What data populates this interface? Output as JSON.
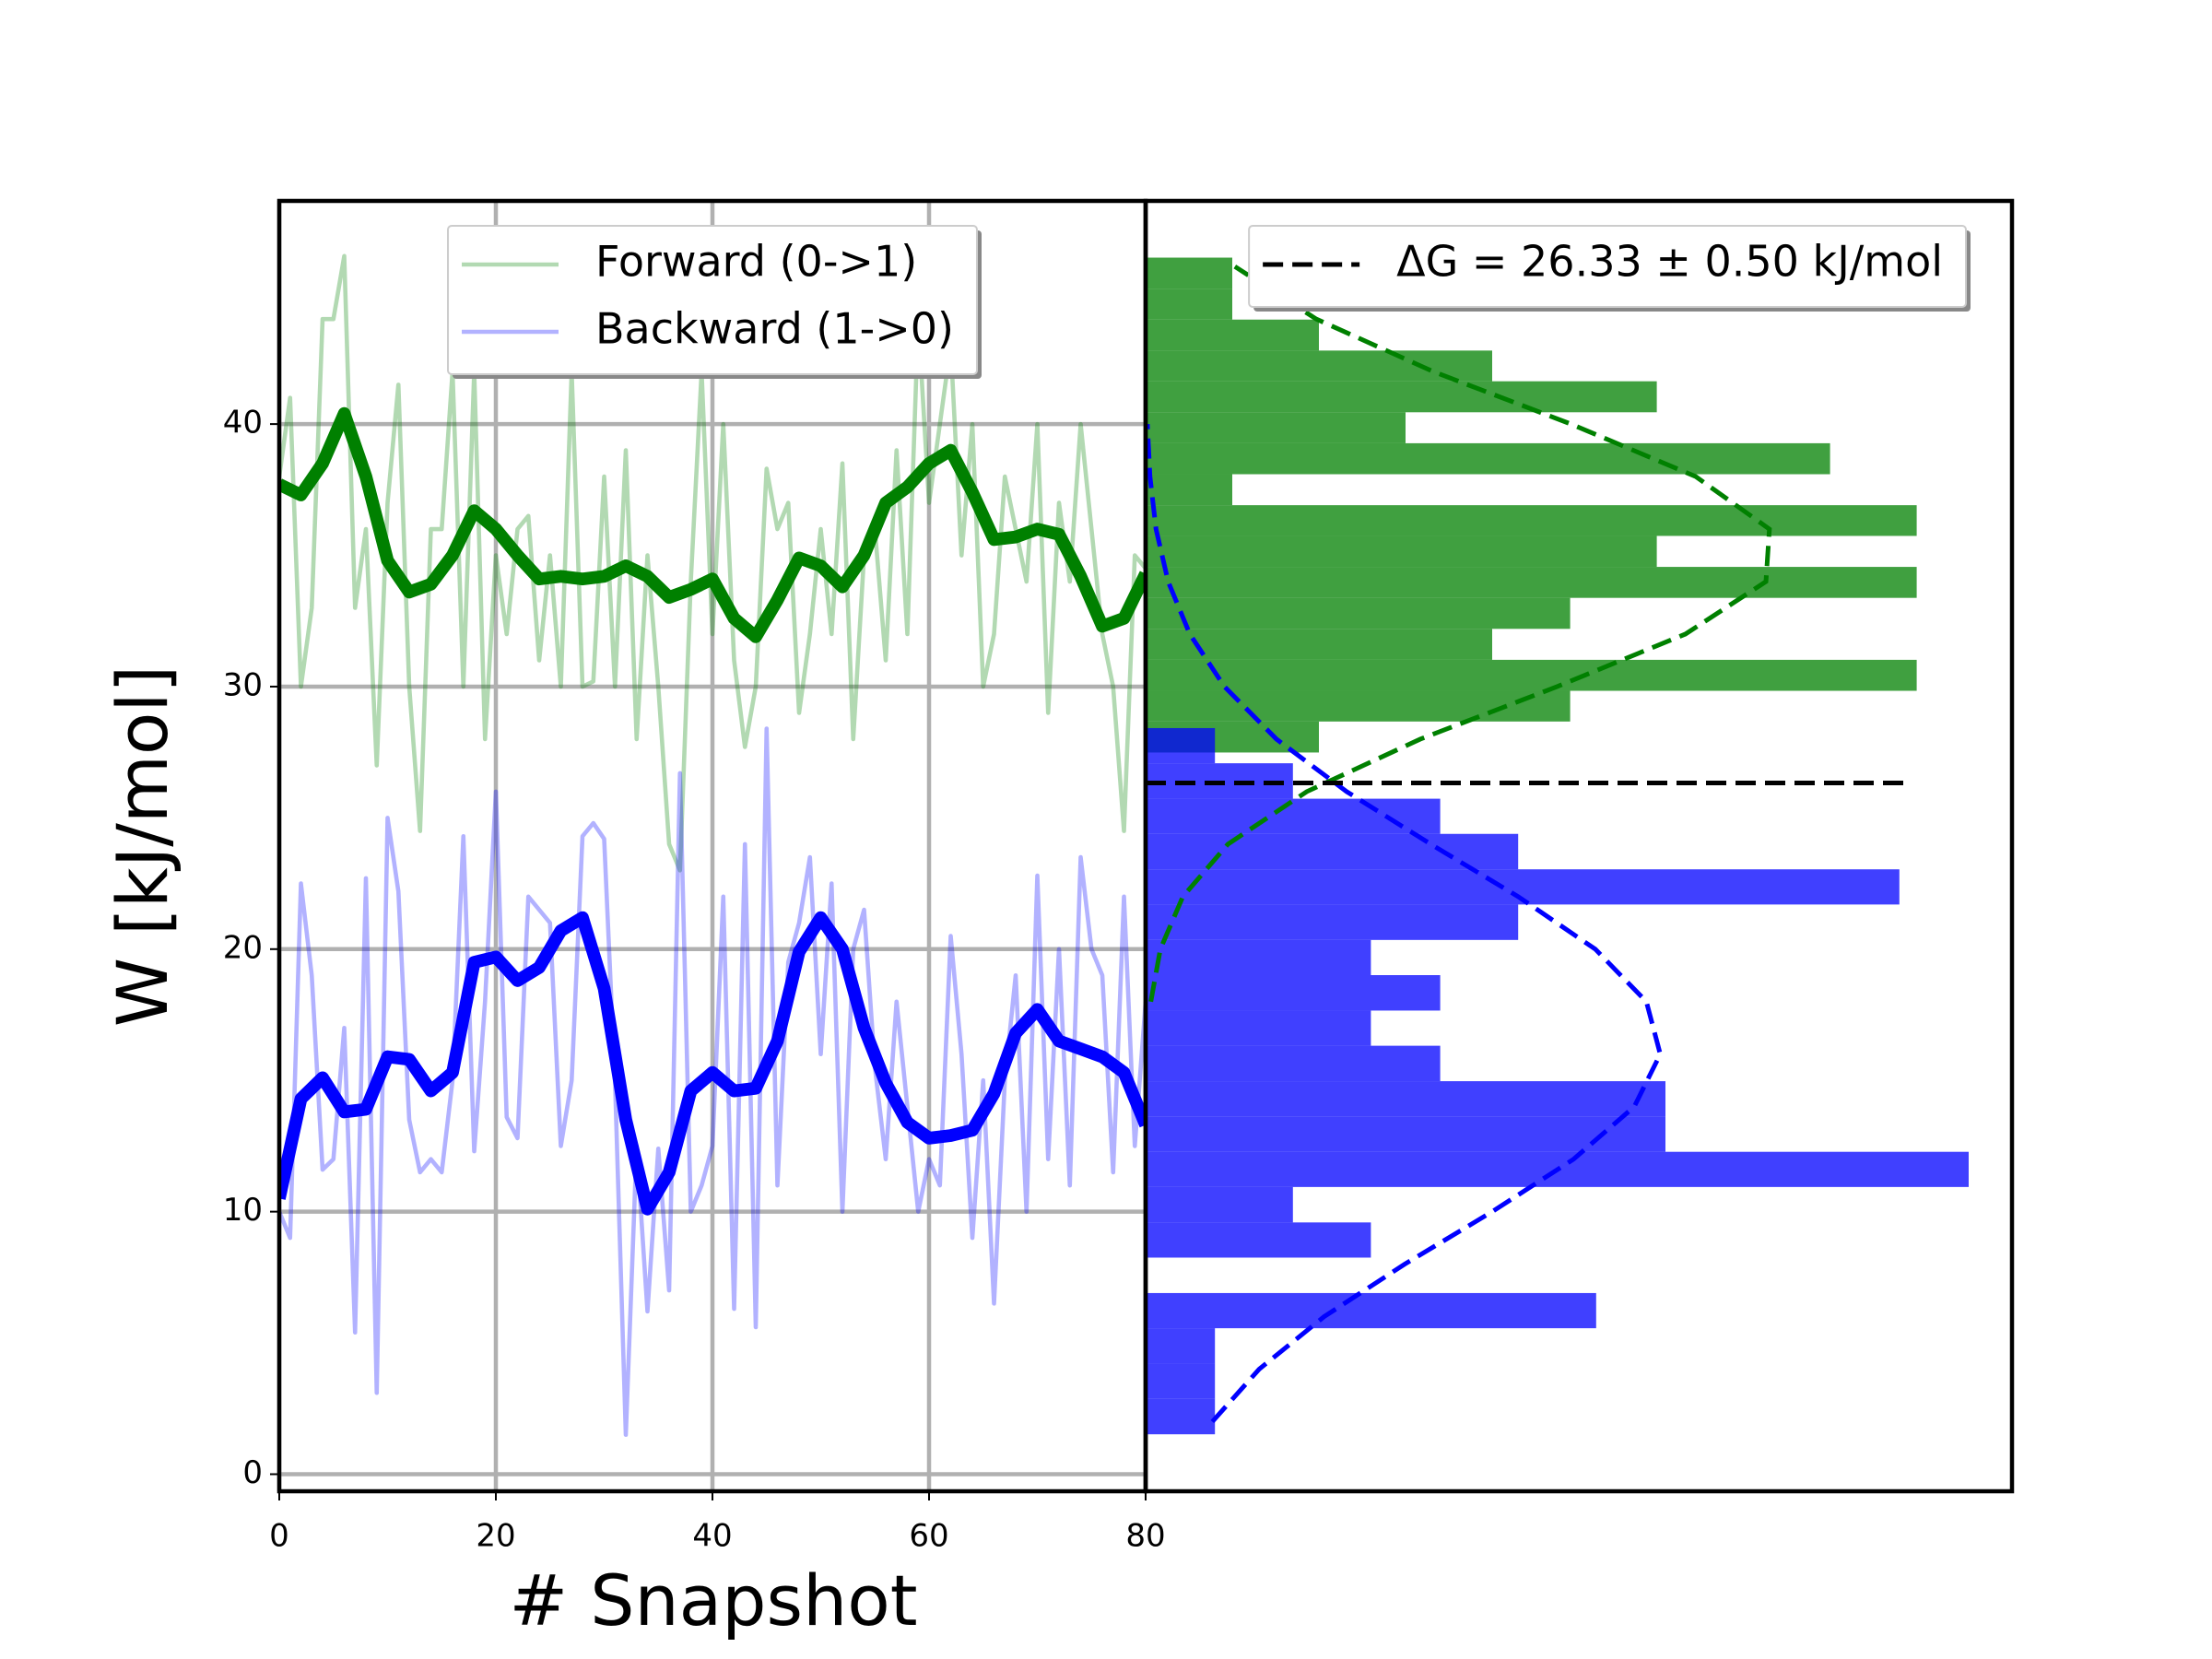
{
  "chart_data": [
    {
      "type": "line",
      "xlabel": "# Snapshot",
      "ylabel": "W [kJ/mol]",
      "xlim": [
        0,
        80
      ],
      "ylim": [
        -0.65,
        48.5
      ],
      "xticks": [
        0,
        20,
        40,
        60,
        80
      ],
      "yticks": [
        0,
        10,
        20,
        30,
        40
      ],
      "grid": true,
      "legend": "upper center",
      "series": [
        {
          "name": "Forward (0->1)",
          "color": "green",
          "alpha": 0.3,
          "linewidth": 2,
          "x": [
            0,
            1,
            2,
            3,
            4,
            5,
            6,
            7,
            8,
            9,
            10,
            11,
            12,
            13,
            14,
            15,
            16,
            17,
            18,
            19,
            20,
            21,
            22,
            23,
            24,
            25,
            26,
            27,
            28,
            29,
            30,
            31,
            32,
            33,
            34,
            35,
            36,
            37,
            38,
            39,
            40,
            41,
            42,
            43,
            44,
            45,
            46,
            47,
            48,
            49,
            50,
            51,
            52,
            53,
            54,
            55,
            56,
            57,
            58,
            59,
            60,
            61,
            62,
            63,
            64,
            65,
            66,
            67,
            68,
            69,
            70,
            71,
            72,
            73,
            74,
            75,
            76,
            77,
            78,
            79,
            80
          ],
          "values": [
            38,
            41,
            30,
            33,
            44,
            44,
            46.4,
            33,
            36,
            27,
            37,
            41.5,
            30,
            24.5,
            36,
            36,
            42,
            30,
            42,
            28,
            35,
            32,
            36,
            36.5,
            31,
            35,
            30,
            42,
            30,
            30.2,
            38,
            30,
            39,
            28,
            35,
            30,
            24,
            23,
            34,
            42,
            32,
            40,
            31,
            27.7,
            30,
            38.3,
            36,
            37,
            29,
            32,
            36,
            32,
            38.5,
            28,
            35,
            36,
            31,
            39,
            32,
            44,
            37,
            40,
            43,
            35,
            40,
            30,
            32,
            38,
            36,
            34,
            40,
            29,
            37,
            34,
            40,
            36,
            32,
            30,
            24.5,
            35,
            34.5
          ]
        },
        {
          "name": "Backward (1->0)",
          "color": "blue",
          "alpha": 0.3,
          "linewidth": 2,
          "x": [
            0,
            1,
            2,
            3,
            4,
            5,
            6,
            7,
            8,
            9,
            10,
            11,
            12,
            13,
            14,
            15,
            16,
            17,
            18,
            19,
            20,
            21,
            22,
            23,
            24,
            25,
            26,
            27,
            28,
            29,
            30,
            31,
            32,
            33,
            34,
            35,
            36,
            37,
            38,
            39,
            40,
            41,
            42,
            43,
            44,
            45,
            46,
            47,
            48,
            49,
            50,
            51,
            52,
            53,
            54,
            55,
            56,
            57,
            58,
            59,
            60,
            61,
            62,
            63,
            64,
            65,
            66,
            67,
            68,
            69,
            70,
            71,
            72,
            73,
            74,
            75,
            76,
            77,
            78,
            79,
            80
          ],
          "values": [
            10,
            9,
            22.5,
            19,
            11.6,
            12,
            17,
            5.4,
            22.7,
            3.1,
            25,
            22.2,
            13.5,
            11.5,
            12,
            11.5,
            15,
            24.3,
            12.3,
            18,
            26,
            13.6,
            12.8,
            22,
            21.5,
            21,
            12.5,
            15,
            24.3,
            24.8,
            24.2,
            15,
            1.5,
            12.5,
            6.2,
            12.4,
            7,
            26.7,
            10,
            11,
            12.5,
            22,
            6.3,
            24,
            5.6,
            28.4,
            11,
            19.5,
            21,
            23.5,
            16,
            22.5,
            10,
            20,
            21.5,
            15.5,
            12,
            18,
            14,
            10,
            12,
            11,
            20.5,
            16,
            9,
            15,
            6.5,
            15,
            19,
            10,
            22.8,
            12,
            20,
            11,
            23.5,
            20,
            19,
            11.5,
            22,
            12.5,
            18
          ]
        },
        {
          "color": "green",
          "alpha": 1,
          "linewidth": 6,
          "x": [
            0,
            2,
            4,
            6,
            8,
            10,
            12,
            14,
            16,
            18,
            20,
            22,
            24,
            26,
            28,
            30,
            32,
            34,
            36,
            38,
            40,
            42,
            44,
            46,
            48,
            50,
            52,
            54,
            56,
            58,
            60,
            62,
            64,
            66,
            68,
            70,
            72,
            74,
            76,
            78,
            80
          ],
          "values": [
            37.7,
            37.3,
            38.5,
            40.4,
            38,
            34.8,
            33.6,
            33.9,
            35,
            36.7,
            36,
            35,
            34.1,
            34.2,
            34.1,
            34.2,
            34.6,
            34.2,
            33.4,
            33.7,
            34.1,
            32.6,
            31.9,
            33.3,
            34.9,
            34.6,
            33.8,
            35,
            37,
            37.6,
            38.5,
            39,
            37.4,
            35.6,
            35.7,
            36,
            35.8,
            34.2,
            32.3,
            32.6,
            34.3
          ]
        },
        {
          "color": "blue",
          "alpha": 1,
          "linewidth": 6,
          "x": [
            0,
            2,
            4,
            6,
            8,
            10,
            12,
            14,
            16,
            18,
            20,
            22,
            24,
            26,
            28,
            30,
            32,
            34,
            36,
            38,
            40,
            42,
            44,
            46,
            48,
            50,
            52,
            54,
            56,
            58,
            60,
            62,
            64,
            66,
            68,
            70,
            72,
            74,
            76,
            78,
            80
          ],
          "values": [
            10.5,
            14.3,
            15.1,
            13.8,
            13.9,
            15.9,
            15.8,
            14.6,
            15.3,
            19.5,
            19.7,
            18.8,
            19.3,
            20.7,
            21.2,
            18.5,
            13.5,
            10.1,
            11.5,
            14.6,
            15.3,
            14.6,
            14.7,
            16.5,
            19.9,
            21.2,
            20,
            17,
            14.9,
            13.4,
            12.8,
            12.9,
            13.1,
            14.5,
            16.8,
            17.7,
            16.5,
            16.2,
            15.9,
            15.3,
            13.3
          ]
        }
      ]
    },
    {
      "type": "histogram",
      "orientation": "horizontal",
      "xlim": [
        0,
        1
      ],
      "ylim": [
        -0.65,
        48.5
      ],
      "legend": "upper right",
      "series": [
        {
          "color": "green",
          "alpha": 0.75,
          "bins": [
            27.49,
            28.67,
            29.84,
            31.02,
            32.2,
            33.38,
            34.56,
            35.74,
            36.91,
            38.09,
            39.27,
            40.45,
            41.63,
            42.8,
            43.98,
            45.16,
            46.34
          ],
          "values": [
            0.2,
            0.49,
            0.89,
            0.4,
            0.49,
            0.89,
            0.59,
            0.89,
            0.1,
            0.79,
            0.3,
            0.59,
            0.4,
            0.2,
            0.1,
            0.1
          ]
        },
        {
          "color": "blue",
          "alpha": 0.75,
          "bins": [
            1.52,
            2.87,
            4.21,
            5.56,
            6.9,
            8.25,
            9.59,
            10.94,
            12.28,
            13.63,
            14.97,
            16.32,
            17.66,
            19.01,
            20.35,
            21.7,
            23.04,
            24.39,
            25.73,
            27.08,
            28.42
          ],
          "values": [
            0.08,
            0.08,
            0.08,
            0.52,
            0,
            0.26,
            0.17,
            0.95,
            0.6,
            0.6,
            0.34,
            0.26,
            0.34,
            0.26,
            0.43,
            0.87,
            0.43,
            0.34,
            0.17,
            0.08
          ]
        }
      ],
      "curves": [
        {
          "color": "green",
          "y": [
            18,
            20,
            22,
            24,
            26,
            28,
            30,
            32,
            34,
            36,
            38,
            40,
            42,
            44,
            46
          ],
          "values": [
            0.006,
            0.017,
            0.043,
            0.095,
            0.186,
            0.317,
            0.475,
            0.623,
            0.716,
            0.72,
            0.635,
            0.491,
            0.332,
            0.197,
            0.103
          ]
        },
        {
          "color": "blue",
          "y": [
            2,
            4,
            6,
            8,
            10,
            12,
            14,
            16,
            18,
            20,
            22,
            24,
            26,
            28,
            30,
            32,
            34,
            36,
            38,
            40
          ],
          "values": [
            0.077,
            0.131,
            0.206,
            0.299,
            0.4,
            0.494,
            0.564,
            0.594,
            0.578,
            0.519,
            0.43,
            0.329,
            0.232,
            0.151,
            0.091,
            0.051,
            0.026,
            0.012,
            0.005,
            0.002
          ]
        }
      ],
      "reference": {
        "name": "ΔG = 26.33 ± 0.50 kJ/mol",
        "value": 26.33,
        "x": [
          0,
          0.88
        ],
        "color": "black"
      }
    }
  ]
}
